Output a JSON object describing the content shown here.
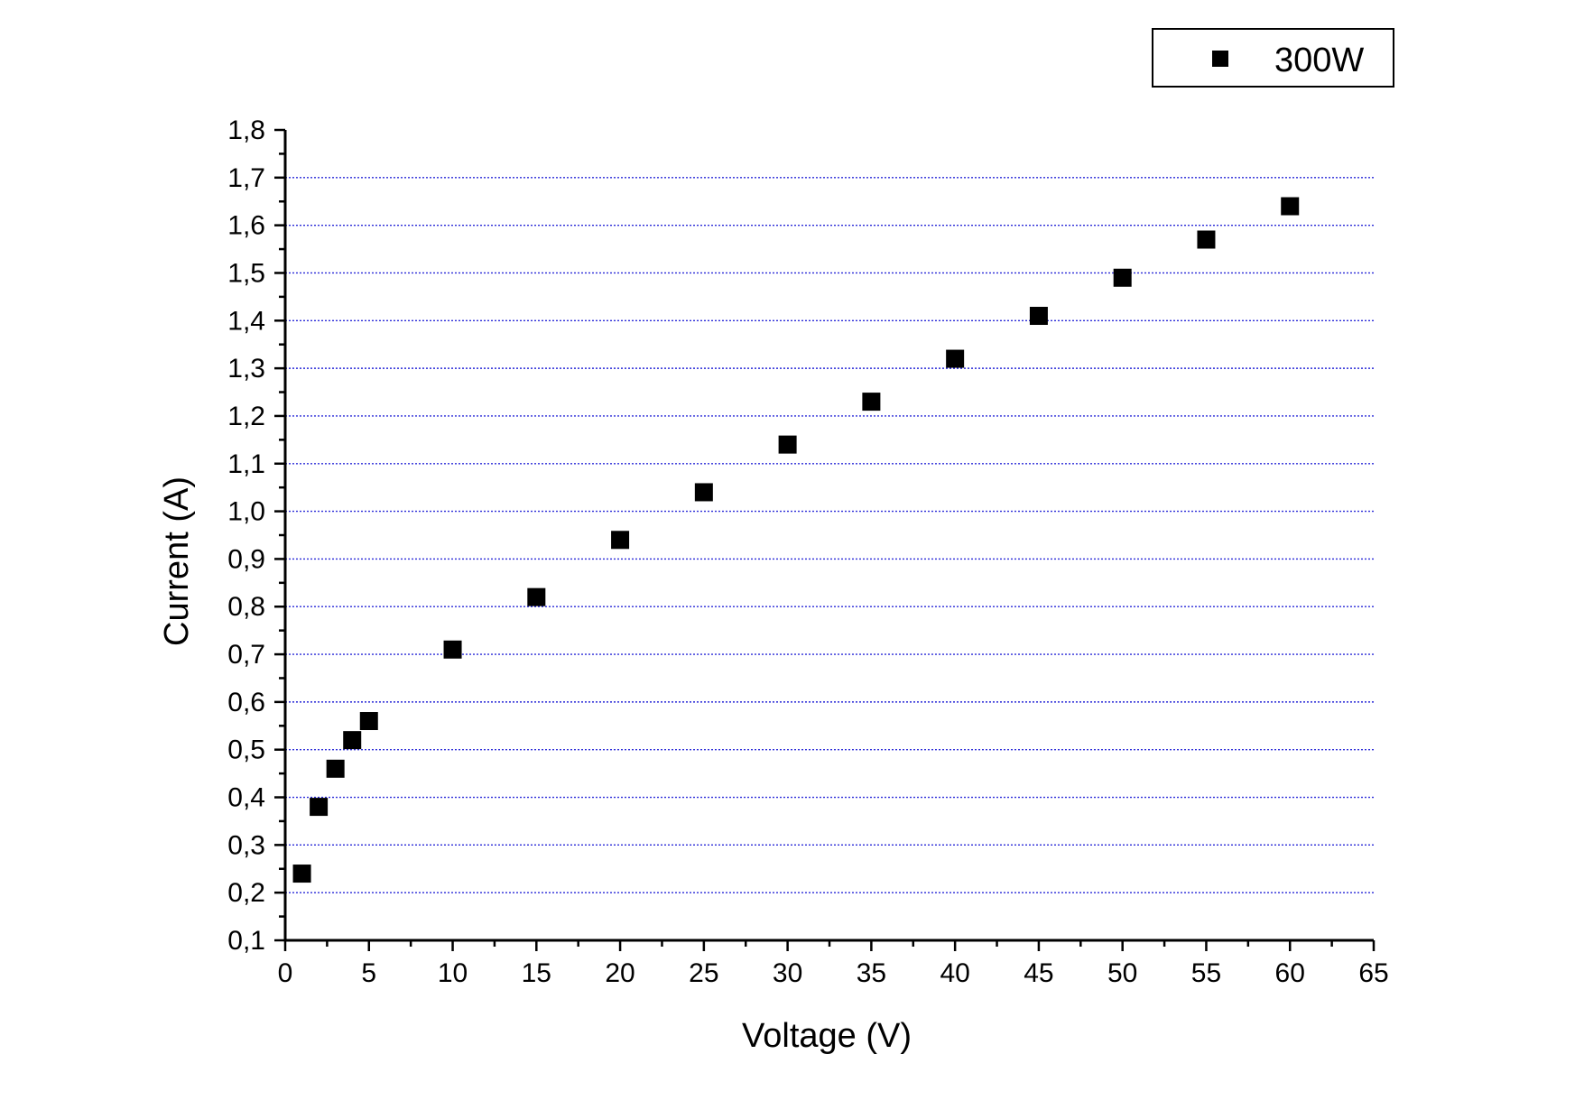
{
  "chart_data": {
    "type": "scatter",
    "xlabel": "Voltage (V)",
    "ylabel": "Current (A)",
    "xlim": [
      0,
      65
    ],
    "ylim": [
      0.1,
      1.8
    ],
    "xticks": [
      0,
      5,
      10,
      15,
      20,
      25,
      30,
      35,
      40,
      45,
      50,
      55,
      60,
      65
    ],
    "xtick_labels": [
      "0",
      "5",
      "10",
      "15",
      "20",
      "25",
      "30",
      "35",
      "40",
      "45",
      "50",
      "55",
      "60",
      "65"
    ],
    "yticks": [
      0.1,
      0.2,
      0.3,
      0.4,
      0.5,
      0.6,
      0.7,
      0.8,
      0.9,
      1.0,
      1.1,
      1.2,
      1.3,
      1.4,
      1.5,
      1.6,
      1.7,
      1.8
    ],
    "ytick_labels": [
      "0,1",
      "0,2",
      "0,3",
      "0,4",
      "0,5",
      "0,6",
      "0,7",
      "0,8",
      "0,9",
      "1,0",
      "1,1",
      "1,2",
      "1,3",
      "1,4",
      "1,5",
      "1,6",
      "1,7",
      "1,8"
    ],
    "grid": "horizontal dotted",
    "grid_color": "#2a2ad8",
    "legend_position": "top-right",
    "series": [
      {
        "name": "300W",
        "marker": "square",
        "color": "#000000",
        "x": [
          1,
          2,
          3,
          4,
          5,
          10,
          15,
          20,
          25,
          30,
          35,
          40,
          45,
          50,
          55,
          60
        ],
        "y": [
          0.24,
          0.38,
          0.46,
          0.52,
          0.56,
          0.71,
          0.82,
          0.94,
          1.04,
          1.14,
          1.23,
          1.32,
          1.41,
          1.49,
          1.57,
          1.64
        ]
      }
    ]
  }
}
